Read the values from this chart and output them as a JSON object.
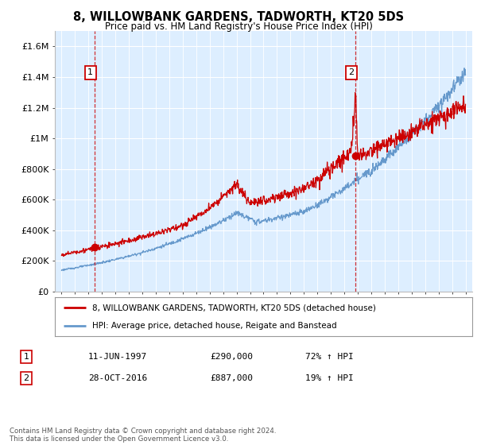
{
  "title": "8, WILLOWBANK GARDENS, TADWORTH, KT20 5DS",
  "subtitle": "Price paid vs. HM Land Registry's House Price Index (HPI)",
  "legend_line1": "8, WILLOWBANK GARDENS, TADWORTH, KT20 5DS (detached house)",
  "legend_line2": "HPI: Average price, detached house, Reigate and Banstead",
  "annotation1_label": "1",
  "annotation1_date": "11-JUN-1997",
  "annotation1_price": "£290,000",
  "annotation1_hpi": "72% ↑ HPI",
  "annotation2_label": "2",
  "annotation2_date": "28-OCT-2016",
  "annotation2_price": "£887,000",
  "annotation2_hpi": "19% ↑ HPI",
  "footer": "Contains HM Land Registry data © Crown copyright and database right 2024.\nThis data is licensed under the Open Government Licence v3.0.",
  "red_color": "#cc0000",
  "blue_color": "#6699cc",
  "bg_color": "#ddeeff",
  "grid_color": "#ffffff",
  "yticks": [
    0,
    200000,
    400000,
    600000,
    800000,
    1000000,
    1200000,
    1400000,
    1600000
  ],
  "ytick_labels": [
    "£0",
    "£200K",
    "£400K",
    "£600K",
    "£800K",
    "£1M",
    "£1.2M",
    "£1.4M",
    "£1.6M"
  ],
  "xmin": 1994.5,
  "xmax": 2025.5,
  "ymin": 0,
  "ymax": 1700000,
  "purchase1_x": 1997.44,
  "purchase1_y": 290000,
  "purchase2_x": 2016.83,
  "purchase2_y": 887000
}
